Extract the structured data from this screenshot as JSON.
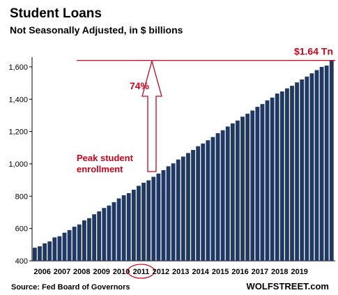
{
  "chart_data": {
    "type": "bar",
    "title": "Student Loans",
    "subtitle": "Not Seasonally Adjusted, in $ billions",
    "ylim": [
      400,
      1660
    ],
    "y_ticks": [
      400,
      600,
      800,
      1000,
      1200,
      1400,
      1600
    ],
    "y_tick_labels": [
      "400",
      "600",
      "800",
      "1,000",
      "1,200",
      "1,400",
      "1,600"
    ],
    "x_tick_labels": [
      "2006",
      "2007",
      "2008",
      "2009",
      "2010",
      "2011",
      "2012",
      "2013",
      "2014",
      "2015",
      "2016",
      "2017",
      "2018",
      "2019"
    ],
    "bar_color": "#1f3864",
    "grid": false,
    "values": [
      481,
      490,
      508,
      520,
      545,
      552,
      574,
      590,
      611,
      625,
      650,
      664,
      688,
      706,
      727,
      742,
      763,
      786,
      806,
      819,
      840,
      864,
      883,
      898,
      920,
      940,
      961,
      985,
      1003,
      1027,
      1045,
      1067,
      1086,
      1109,
      1126,
      1146,
      1166,
      1190,
      1208,
      1231,
      1250,
      1268,
      1292,
      1310,
      1330,
      1353,
      1370,
      1393,
      1410,
      1435,
      1448,
      1467,
      1483,
      1504,
      1522,
      1540,
      1560,
      1580,
      1600,
      1608,
      1640
    ],
    "annotations": {
      "peak_value_label": "$1.64 Tn",
      "percent_label": "74%",
      "peak_enrollment_line1": "Peak student",
      "peak_enrollment_line2": "enrollment",
      "highlighted_year": "2011"
    },
    "annotation_color": "#d0021b"
  },
  "footer": {
    "source": "Source: Fed Board of Governors",
    "brand": "WOLFSTREET.com"
  }
}
